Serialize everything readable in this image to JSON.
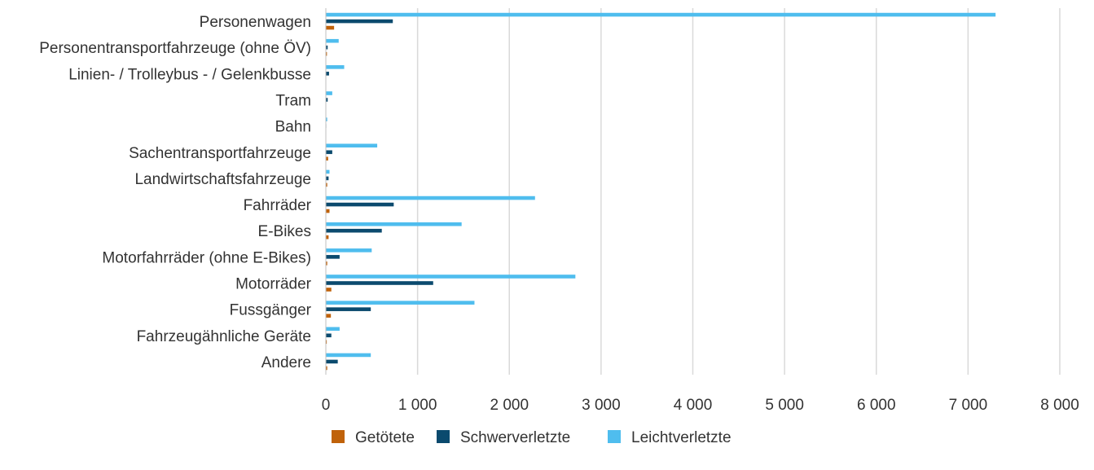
{
  "chart_data": {
    "type": "bar",
    "orientation": "horizontal",
    "categories": [
      "Personenwagen",
      "Personentransportfahrzeuge (ohne ÖV)",
      "Linien- / Trolleybus - / Gelenkbusse",
      "Tram",
      "Bahn",
      "Sachentransportfahrzeuge",
      "Landwirtschaftsfahrzeuge",
      "Fahrräder",
      "E-Bikes",
      "Motorfahrräder (ohne E-Bikes)",
      "Motorräder",
      "Fussgänger",
      "Fahrzeugähnliche Geräte",
      "Andere"
    ],
    "series": [
      {
        "name": "Getötete",
        "color": "#c0620a",
        "values": [
          90,
          12,
          3,
          2,
          1,
          25,
          15,
          40,
          30,
          15,
          60,
          55,
          10,
          15
        ]
      },
      {
        "name": "Schwerverletzte",
        "color": "#0b4a6e",
        "values": [
          730,
          20,
          35,
          20,
          5,
          70,
          30,
          740,
          610,
          150,
          1170,
          490,
          60,
          130
        ]
      },
      {
        "name": "Leichtverletzte",
        "color": "#4fbdee",
        "values": [
          7300,
          140,
          200,
          70,
          15,
          560,
          40,
          2280,
          1480,
          500,
          2720,
          1620,
          150,
          490
        ]
      }
    ],
    "xlim": [
      0,
      8000
    ],
    "xticks": [
      0,
      1000,
      2000,
      3000,
      4000,
      5000,
      6000,
      7000,
      8000
    ],
    "xtick_labels": [
      "0",
      "1 000",
      "2 000",
      "3 000",
      "4 000",
      "5 000",
      "6 000",
      "7 000",
      "8 000"
    ],
    "grid": "vertical",
    "legend_position": "bottom-center",
    "title": "",
    "xlabel": "",
    "ylabel": ""
  }
}
